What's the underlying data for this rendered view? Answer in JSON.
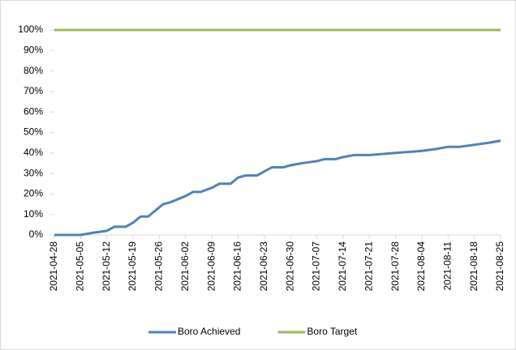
{
  "chart_data": {
    "type": "line",
    "x": [
      "2021-04-28",
      "2021-05-05",
      "2021-05-08",
      "2021-05-12",
      "2021-05-14",
      "2021-05-17",
      "2021-05-19",
      "2021-05-21",
      "2021-05-23",
      "2021-05-25",
      "2021-05-27",
      "2021-05-29",
      "2021-06-02",
      "2021-06-04",
      "2021-06-06",
      "2021-06-09",
      "2021-06-11",
      "2021-06-14",
      "2021-06-16",
      "2021-06-18",
      "2021-06-21",
      "2021-06-23",
      "2021-06-25",
      "2021-06-28",
      "2021-06-30",
      "2021-07-03",
      "2021-07-07",
      "2021-07-09",
      "2021-07-12",
      "2021-07-14",
      "2021-07-17",
      "2021-07-21",
      "2021-07-28",
      "2021-08-04",
      "2021-08-08",
      "2021-08-11",
      "2021-08-14",
      "2021-08-18",
      "2021-08-22",
      "2021-08-25"
    ],
    "series": [
      {
        "name": "Boro Achieved",
        "color": "#4f81bd",
        "values": [
          0,
          0,
          1,
          2,
          4,
          4,
          6,
          9,
          9,
          12,
          15,
          16,
          19,
          21,
          21,
          23,
          25,
          25,
          28,
          29,
          29,
          31,
          33,
          33,
          34,
          35,
          36,
          37,
          37,
          38,
          39,
          39,
          40,
          41,
          42,
          43,
          43,
          44,
          45,
          46
        ]
      },
      {
        "name": "Boro Target",
        "color": "#9bbb59",
        "values": [
          100,
          100,
          100,
          100,
          100,
          100,
          100,
          100,
          100,
          100,
          100,
          100,
          100,
          100,
          100,
          100,
          100,
          100,
          100,
          100,
          100,
          100,
          100,
          100,
          100,
          100,
          100,
          100,
          100,
          100,
          100,
          100,
          100,
          100,
          100,
          100,
          100,
          100,
          100,
          100
        ]
      }
    ],
    "xlim": [
      "2021-04-28",
      "2021-08-25"
    ],
    "xticks": [
      "2021-04-28",
      "2021-05-05",
      "2021-05-12",
      "2021-05-19",
      "2021-05-26",
      "2021-06-02",
      "2021-06-09",
      "2021-06-16",
      "2021-06-23",
      "2021-06-30",
      "2021-07-07",
      "2021-07-14",
      "2021-07-21",
      "2021-07-28",
      "2021-08-04",
      "2021-08-11",
      "2021-08-18",
      "2021-08-25"
    ],
    "ylim": [
      0,
      100
    ],
    "yticks": [
      {
        "value": 0,
        "label": "0%"
      },
      {
        "value": 10,
        "label": "10%"
      },
      {
        "value": 20,
        "label": "20%"
      },
      {
        "value": 30,
        "label": "30%"
      },
      {
        "value": 40,
        "label": "40%"
      },
      {
        "value": 50,
        "label": "50%"
      },
      {
        "value": 60,
        "label": "60%"
      },
      {
        "value": 70,
        "label": "70%"
      },
      {
        "value": 80,
        "label": "80%"
      },
      {
        "value": 90,
        "label": "90%"
      },
      {
        "value": 100,
        "label": "100%"
      }
    ],
    "legend": "bottom"
  }
}
